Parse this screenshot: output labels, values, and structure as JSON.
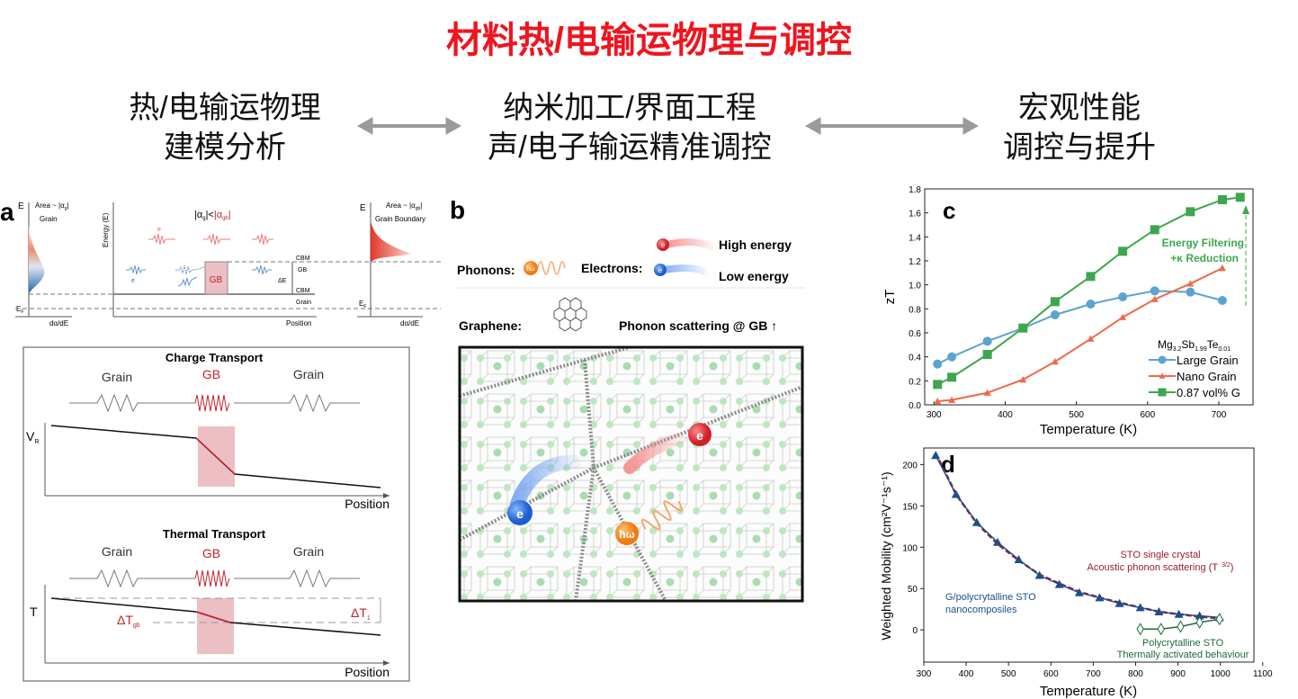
{
  "title": "材料热/电输运物理与调控",
  "columns": [
    {
      "line1": "热/电输运物理",
      "line2": "建模分析"
    },
    {
      "line1": "纳米加工/界面工程",
      "line2": "声/电子输运精准调控"
    },
    {
      "line1": "宏观性能",
      "line2": "调控与提升"
    }
  ],
  "panel_a": {
    "label": "a",
    "top": {
      "e_left": "E",
      "area_grain": "Area ~ |α",
      "area_grain_sub": "g",
      "grain": "Grain",
      "ef_left": "E",
      "ef_sub": "F",
      "dadE_left": "dα/dE",
      "energy_axis": "Energy (E)",
      "alpha_cmp_left": "|α",
      "alpha_cmp_left_sub": "g",
      "alpha_cmp_mid": "|<",
      "alpha_cmp_right": "|α",
      "alpha_cmp_right_sub": "gb",
      "alpha_cmp_end": "|",
      "electron_hi": "e",
      "electron_lo": "e",
      "gb_box": "GB",
      "cbm1": "CBM",
      "gb_label": "GB",
      "delta_e": "ΔE",
      "cbm2": "CBM",
      "grain_label": "Grain",
      "position": "Position",
      "e_right": "E",
      "area_gb": "Area ~ |α",
      "area_gb_sub": "gb",
      "grain_boundary": "Grain Boundary",
      "ef_right": "E",
      "ef_right_sub": "F",
      "dadE_right": "dα/dE"
    },
    "charge": {
      "title": "Charge Transport",
      "grain1": "Grain",
      "gb": "GB",
      "grain2": "Grain",
      "axis": "V",
      "axis_sub": "R",
      "position": "Position"
    },
    "thermal": {
      "title": "Thermal Transport",
      "grain1": "Grain",
      "gb": "GB",
      "grain2": "Grain",
      "axis": "T",
      "dtgb": "ΔT",
      "dtgb_sub": "gb",
      "dt1": "ΔT",
      "dt1_sub": "1",
      "position": "Position"
    }
  },
  "panel_b": {
    "label": "b",
    "high_energy": "High energy",
    "low_energy": "Low  energy",
    "phonons": "Phonons:",
    "phonon_symbol": "ħω",
    "electrons": "Electrons:",
    "electron_symbol": "e",
    "graphene": "Graphene:",
    "phonon_scattering": "Phonon scattering @ GB ↑"
  },
  "chart_data": [
    {
      "panel": "c",
      "type": "line",
      "xlabel": "Temperature (K)",
      "ylabel": "zT",
      "xlim": [
        287,
        748
      ],
      "ylim": [
        0,
        1.8
      ],
      "xticks": [
        300,
        400,
        500,
        600,
        700
      ],
      "yticks": [
        "0.0",
        "0.2",
        "0.4",
        "0.6",
        "0.8",
        "1.0",
        "1.2",
        "1.4",
        "1.6",
        "1.8"
      ],
      "legend_title_parts": [
        "Mg",
        "3.2",
        "Sb",
        "1.99",
        "Te",
        "0.01"
      ],
      "legend_position": "bottom-right",
      "annotation": [
        "Energy Filtering",
        "+κ Reduction"
      ],
      "series": [
        {
          "name": "Large Grain",
          "color": "#5ba3d0",
          "marker": "circle",
          "x": [
            305,
            325,
            375,
            425,
            470,
            520,
            565,
            610,
            660,
            705
          ],
          "y": [
            0.34,
            0.4,
            0.53,
            0.64,
            0.75,
            0.84,
            0.9,
            0.95,
            0.94,
            0.87
          ]
        },
        {
          "name": "Nano Grain",
          "color": "#ef6a4a",
          "marker": "triangle",
          "x": [
            305,
            325,
            375,
            425,
            470,
            520,
            565,
            610,
            660,
            705
          ],
          "y": [
            0.03,
            0.04,
            0.1,
            0.21,
            0.36,
            0.55,
            0.73,
            0.88,
            1.01,
            1.14
          ]
        },
        {
          "name": "0.87 vol% G",
          "color": "#3ea64e",
          "marker": "square",
          "x": [
            305,
            325,
            375,
            425,
            470,
            520,
            565,
            610,
            660,
            705,
            730
          ],
          "y": [
            0.17,
            0.23,
            0.42,
            0.64,
            0.86,
            1.07,
            1.28,
            1.46,
            1.61,
            1.71,
            1.73
          ]
        }
      ]
    },
    {
      "panel": "d",
      "type": "line",
      "xlabel": "Temperature (K)",
      "ylabel": "Weighted Mobility (cm²V⁻¹s⁻¹)",
      "xlim": [
        300,
        1100
      ],
      "ylim": [
        -39,
        220
      ],
      "xticks": [
        300,
        400,
        500,
        600,
        700,
        800,
        900,
        1000,
        1100
      ],
      "yticks": [
        0,
        50,
        100,
        150,
        200
      ],
      "annotations": {
        "single_crystal": [
          "STO single crystal",
          "Acoustic phonon scattering (T",
          "3/2",
          ")"
        ],
        "composite": [
          "G/polycrytalline STO",
          "nanocomposiles"
        ],
        "poly": [
          "Polycrytalline STO",
          "Thermally activated behaviour"
        ]
      },
      "series": [
        {
          "name": "STO single crystal",
          "color": "#9b1c2a",
          "style": "dashed",
          "x": [
            328,
            376,
            425,
            474,
            524,
            573,
            620,
            667,
            715,
            762,
            811,
            855,
            902,
            951,
            998
          ],
          "y": [
            214,
            164,
            129,
            104,
            84,
            67,
            56,
            46,
            39,
            33,
            27,
            22,
            19,
            16,
            14
          ]
        },
        {
          "name": "G/polycrytalline STO nanocomposiles",
          "color": "#1f4e8c",
          "marker": "triangle",
          "x": [
            328,
            376,
            425,
            474,
            524,
            573,
            620,
            667,
            715,
            762,
            811,
            855,
            902,
            951,
            998
          ],
          "y": [
            211,
            164,
            130,
            106,
            85,
            66,
            55,
            45,
            39,
            32,
            27,
            22,
            19,
            17,
            15
          ]
        },
        {
          "name": "Polycrytalline STO",
          "color": "#1e6b3a",
          "marker": "diamond",
          "x": [
            811,
            860,
            906,
            951,
            998
          ],
          "y": [
            1,
            1,
            4,
            9,
            13
          ]
        }
      ]
    }
  ]
}
